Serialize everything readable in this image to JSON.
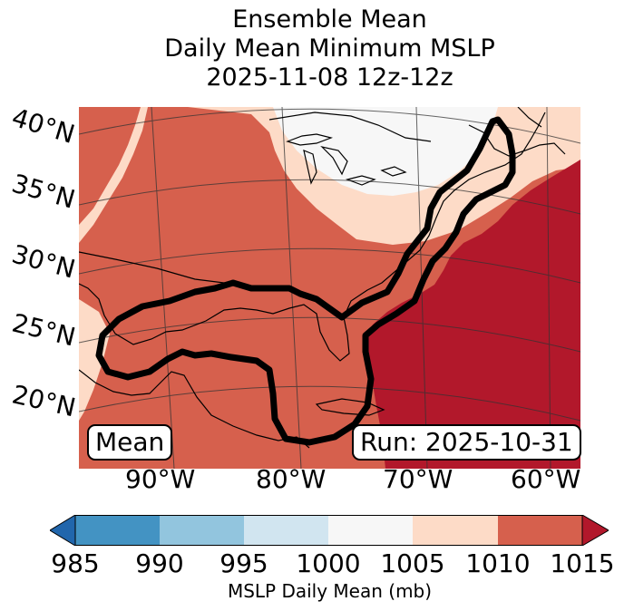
{
  "title": {
    "line1": "Ensemble Mean",
    "line2": "Daily Mean Minimum MSLP",
    "line3": "2025-11-08 12z-12z"
  },
  "lat_labels": [
    "40°N",
    "35°N",
    "30°N",
    "25°N",
    "20°N"
  ],
  "lon_labels": [
    "90°W",
    "80°W",
    "70°W",
    "60°W"
  ],
  "legend_box": "Mean",
  "run_box": "Run: 2025-10-31",
  "colorbar": {
    "label": "MSLP Daily Mean (mb)",
    "ticks": [
      "985",
      "990",
      "995",
      "1000",
      "1005",
      "1010",
      "1015"
    ],
    "colors": [
      "#4393c3",
      "#92c5de",
      "#d1e5f0",
      "#f7f7f7",
      "#fddbc7",
      "#d6604d",
      "#b2182b"
    ],
    "under_color": "#2166ac",
    "over_color": "#b2182b"
  },
  "map_colors": {
    "bin_1005_1010": "#fddbc7",
    "bin_1000_1005": "#f7f7f7",
    "bin_1010_1015": "#d6604d",
    "bin_above_1015": "#b2182b",
    "contour": "#000000"
  }
}
